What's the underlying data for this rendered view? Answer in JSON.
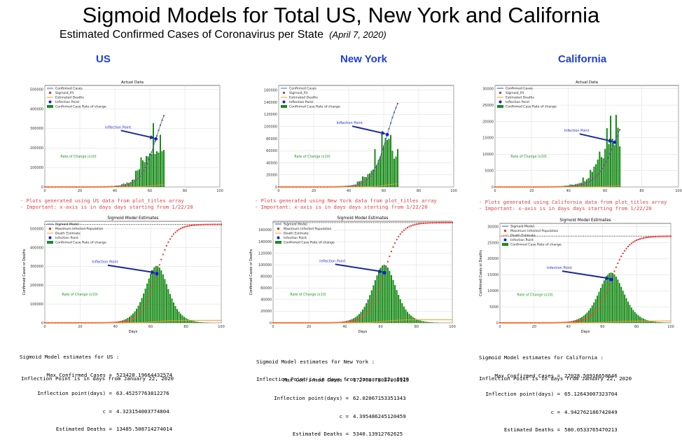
{
  "header": {
    "title": "Sigmoid Models for Total US, New York and California",
    "subtitle": "Estimated Confirmed Cases of Coronavirus per State",
    "date": "(April 7, 2020)"
  },
  "colors": {
    "cases_line": "#1f77b4",
    "sigmoid": "#e8312a",
    "deaths": "#ff9a1a",
    "inflection": "#0a1ef0",
    "rate": "#1a8c1a",
    "rate_label": "#1a9a1a",
    "arrow": "#1a2a9a",
    "state_label": "#1f3fd6"
  },
  "legend_actual": [
    "Confirmed Cases",
    "Sigmoid_Fit",
    "Estimated Deaths",
    "Inflection Point",
    "Confirmed Case Rate of change"
  ],
  "legend_model": [
    "Sigmoid Model",
    "Maximum Infected Population",
    "Death Estimate",
    "Infection Point",
    "Confirmed Case Rate of change"
  ],
  "panels": [
    {
      "state": "US",
      "actual_title": "Actual Data",
      "model_title": "Sigmoid Model Estimates",
      "actual_yticks": [
        "0",
        "100000",
        "200000",
        "300000",
        "400000",
        "500000"
      ],
      "model_yticks": [
        "0",
        "100000",
        "200000",
        "300000",
        "400000",
        "500000"
      ],
      "xticks": [
        "0",
        "20",
        "40",
        "60",
        "80",
        "100"
      ],
      "model_xlabel": "Days",
      "model_ylabel": "Confirmed Cases or Deaths",
      "inflection_label": "Inflection Point",
      "rate_label": "Rate of Change (x10)",
      "notes": [
        "- Plots generated using US data from plot_titles array",
        "- Important: x-axis is in days days starting from 1/22/20"
      ],
      "estimates_title": "Sigmoid Model estimates for US :",
      "estimates": [
        {
          "label": "Max Confirmed Cases =",
          "value": "523428.19664432574"
        },
        {
          "label": "Inflection point(days) =",
          "value": "63.45257763812276"
        },
        {
          "label": "c =",
          "value": "4.323154003774804"
        },
        {
          "label": "Estimated Deaths =",
          "value": "13485.508714274014"
        }
      ],
      "inflection_note": "Inflection Point is in days from January 22, 2020"
    },
    {
      "state": "New York",
      "actual_title": "",
      "model_title": "Sigmoid Model Estimates",
      "actual_yticks": [
        "0",
        "20000",
        "40000",
        "60000",
        "80000",
        "100000",
        "120000",
        "140000",
        "160000"
      ],
      "model_yticks": [
        "0",
        "20000",
        "40000",
        "60000",
        "80000",
        "100000",
        "120000",
        "140000",
        "160000"
      ],
      "xticks": [
        "0",
        "20",
        "40",
        "60",
        "80",
        "100"
      ],
      "model_xlabel": "Days",
      "model_ylabel": "Confirmed Cases or Deaths",
      "inflection_label": "Inflection Point",
      "rate_label": "Rate of Change (x10)",
      "notes": [
        "- Plots generated using New York data from plot_titles array",
        "- Important: x-axis is in days days starting from 1/22/20"
      ],
      "estimates_title": "Sigmoid Model estimates for New York :",
      "estimates": [
        {
          "label": "Max Confirmed Cases =",
          "value": "172768.76057005115"
        },
        {
          "label": "Inflection point(days) =",
          "value": "62.02067153351343"
        },
        {
          "label": "c =",
          "value": "4.395486245120459"
        },
        {
          "label": "Estimated Deaths =",
          "value": "5340.13912762625"
        }
      ],
      "inflection_note": "Inflection Point is in days from January 22, 2020"
    },
    {
      "state": "California",
      "actual_title": "Actual Data",
      "model_title": "Sigmoid Model Estimates",
      "actual_yticks": [
        "0",
        "5000",
        "10000",
        "15000",
        "20000",
        "25000",
        "30000"
      ],
      "model_yticks": [
        "0",
        "5000",
        "10000",
        "15000",
        "20000",
        "25000",
        "30000"
      ],
      "xticks": [
        "0",
        "20",
        "40",
        "60",
        "80",
        "100"
      ],
      "model_xlabel": "Days",
      "model_ylabel": "Confirmed Cases or Deaths",
      "inflection_label": "Infection Point",
      "rate_label": "Rate of Change (x10)",
      "notes": [
        "- Plots generated using California data from plot_titles array",
        "- Important: x-axis is in days days starting from 1/22/20"
      ],
      "estimates_title": "Sigmoid Model estimates for California :",
      "estimates": [
        {
          "label": "Max Confirmed Cases =",
          "value": "27028.50916658646"
        },
        {
          "label": "Inflection point(days) =",
          "value": "65.12643007323704"
        },
        {
          "label": "c =",
          "value": "4.942762186742049"
        },
        {
          "label": "Estimated Deaths =",
          "value": "580.0533765470213"
        }
      ],
      "inflection_note": "Inflection Point is in days from January 22, 2020"
    }
  ],
  "chart_data": [
    {
      "type": "bar",
      "name": "US actual",
      "xlim": [
        0,
        100
      ],
      "ylim": [
        0,
        520000
      ],
      "max_cases": 523428.19664432574,
      "inflection_day": 63.45257763812276,
      "c": 4.323154003774804,
      "actual_last_day": 68,
      "max_rate_x10": 300000,
      "final_cases": 365000,
      "final_deaths": 12000
    },
    {
      "type": "bar",
      "name": "US model",
      "xlim": [
        0,
        100
      ],
      "ylim": [
        0,
        540000
      ],
      "max_cases": 523428.19664432574,
      "inflection_day": 63.45257763812276,
      "c": 4.323154003774804,
      "max_infected": 523428.19664432574,
      "deaths": 13485.508714274014
    },
    {
      "type": "bar",
      "name": "New York actual",
      "xlim": [
        0,
        100
      ],
      "ylim": [
        0,
        168000
      ],
      "max_cases": 172768.76057005115,
      "inflection_day": 62.02067153351343,
      "c": 4.395486245120459,
      "actual_last_day": 68,
      "max_rate_x10": 100000,
      "final_cases": 138000,
      "final_deaths": 5300
    },
    {
      "type": "bar",
      "name": "New York model",
      "xlim": [
        0,
        100
      ],
      "ylim": [
        0,
        175000
      ],
      "max_cases": 172768.76057005115,
      "inflection_day": 62.02067153351343,
      "c": 4.395486245120459,
      "max_infected": 172768.76057005115,
      "deaths": 5340.13912762625
    },
    {
      "type": "bar",
      "name": "California actual",
      "xlim": [
        0,
        100
      ],
      "ylim": [
        0,
        31000
      ],
      "max_cases": 27028.50916658646,
      "inflection_day": 65.12643007323705,
      "c": 4.942762186742049,
      "actual_last_day": 68,
      "max_rate_x10": 22000,
      "final_cases": 17500,
      "final_deaths": 450
    },
    {
      "type": "bar",
      "name": "California model",
      "xlim": [
        0,
        100
      ],
      "ylim": [
        0,
        31000
      ],
      "max_cases": 27028.50916658646,
      "inflection_day": 65.12643007323705,
      "c": 4.942762186742049,
      "max_infected": 27028.50916658646,
      "deaths": 580.0533765470213
    }
  ]
}
